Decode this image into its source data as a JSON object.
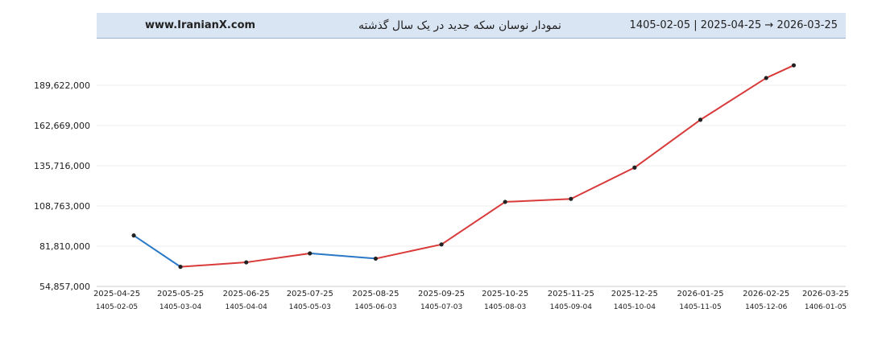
{
  "header": {
    "site": "www.IranianX.com",
    "title": "نمودار نوسان سکه جدید در یک سال گذشته",
    "date_range": "1405-02-05  |  2025-04-25  →  2026-03-25"
  },
  "chart_data": {
    "type": "line",
    "title": "نمودار نوسان سکه جدید در یک سال گذشته",
    "x_ticks": [
      "2025-04-25",
      "2025-05-25",
      "2025-06-25",
      "2025-07-25",
      "2025-08-25",
      "2025-09-25",
      "2025-10-25",
      "2025-11-25",
      "2025-12-25",
      "2026-01-25",
      "2026-02-25",
      "2026-03-25"
    ],
    "x_ticks_secondary": [
      "1405-02-05",
      "1405-03-04",
      "1405-04-04",
      "1405-05-03",
      "1405-06-03",
      "1405-07-03",
      "1405-08-03",
      "1405-09-04",
      "1405-10-04",
      "1405-11-05",
      "1405-12-06",
      "1406-01-05"
    ],
    "y_ticks": [
      "54,857,000",
      "81,810,000",
      "108,763,000",
      "135,716,000",
      "162,669,000",
      "189,622,000"
    ],
    "ylim": [
      54857000,
      189622000
    ],
    "grid": true,
    "colors": {
      "up": "#d93a3a",
      "down": "#2a78c8",
      "point": "#222222"
    },
    "points": [
      {
        "x": "2025-05-03",
        "y": 89000000
      },
      {
        "x": "2025-05-25",
        "y": 68000000
      },
      {
        "x": "2025-06-25",
        "y": 71000000
      },
      {
        "x": "2025-07-25",
        "y": 77000000
      },
      {
        "x": "2025-08-25",
        "y": 73500000
      },
      {
        "x": "2025-09-25",
        "y": 83000000
      },
      {
        "x": "2025-10-25",
        "y": 111500000
      },
      {
        "x": "2025-11-25",
        "y": 113500000
      },
      {
        "x": "2025-12-25",
        "y": 134500000
      },
      {
        "x": "2026-01-25",
        "y": 166500000
      },
      {
        "x": "2026-02-25",
        "y": 194500000
      },
      {
        "x": "2026-03-10",
        "y": 203000000
      }
    ]
  }
}
